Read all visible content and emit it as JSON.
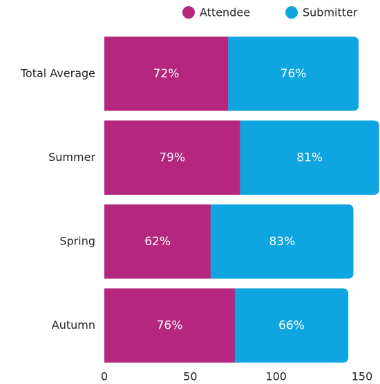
{
  "chart_data": {
    "type": "bar",
    "orientation": "horizontal",
    "stacked": true,
    "categories": [
      "Total Average",
      "Summer",
      "Spring",
      "Autumn"
    ],
    "series": [
      {
        "name": "Attendee",
        "color": "#b5267e",
        "values": [
          72,
          79,
          62,
          76
        ],
        "value_labels": [
          "72%",
          "79%",
          "62%",
          "76%"
        ]
      },
      {
        "name": "Submitter",
        "color": "#0ea5e0",
        "values": [
          76,
          81,
          83,
          66
        ],
        "value_labels": [
          "76%",
          "81%",
          "83%",
          "66%"
        ]
      }
    ],
    "xlim": [
      0,
      150
    ],
    "xticks": [
      0,
      50,
      100,
      150
    ],
    "legend": "top-right",
    "grid": false
  }
}
